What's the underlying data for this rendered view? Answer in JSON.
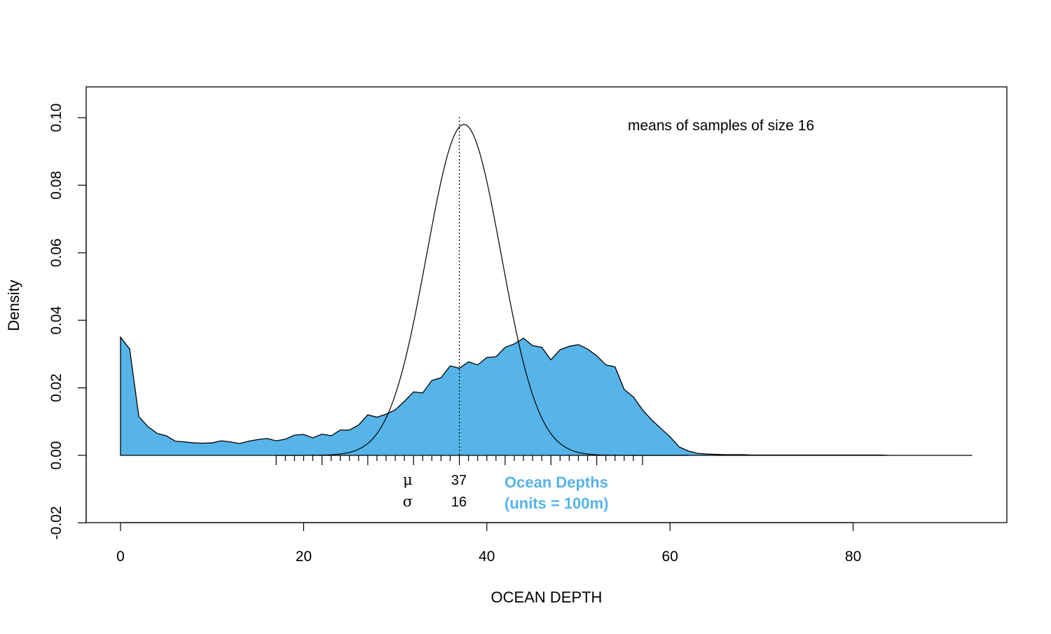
{
  "chart_data": {
    "type": "area",
    "title": "",
    "xlabel": "OCEAN DEPTH",
    "ylabel": "Density",
    "xlim": [
      0,
      93
    ],
    "ylim": [
      -0.02,
      0.1
    ],
    "x_ticks": [
      "0",
      "20",
      "40",
      "60",
      "80"
    ],
    "y_ticks": [
      "-0.02",
      "0.00",
      "0.02",
      "0.04",
      "0.06",
      "0.08",
      "0.10"
    ],
    "grid": false,
    "annotation": "means of samples of size 16",
    "legend_text": [
      "Ocean Depths",
      "(units = 100m)"
    ],
    "mu_symbol": "μ",
    "sigma_symbol": "σ",
    "mu": "37",
    "sigma": "16",
    "colors": {
      "fill": "#56B4E9",
      "stroke": "#000000",
      "annotation": "#56B4E9"
    },
    "series": [
      {
        "kind": "density-area",
        "x": [
          0,
          1,
          2,
          3,
          4,
          5,
          6,
          7,
          8,
          9,
          10,
          11,
          12,
          13,
          14,
          15,
          16,
          17,
          18,
          19,
          20,
          21,
          22,
          23,
          24,
          25,
          26,
          27,
          28,
          29,
          30,
          31,
          32,
          33,
          34,
          35,
          36,
          37,
          38,
          39,
          40,
          41,
          42,
          43,
          44,
          45,
          46,
          47,
          48,
          49,
          50,
          51,
          52,
          53,
          54,
          55,
          56,
          57,
          58,
          59,
          60,
          61,
          62,
          63,
          64,
          65,
          66,
          67,
          68,
          69,
          70,
          71,
          72,
          73,
          74,
          75,
          76,
          77,
          78,
          79,
          80,
          81,
          82,
          83,
          84,
          85,
          86,
          87,
          88,
          89,
          90,
          91,
          92,
          93
        ],
        "y": [
          0.035,
          0.0315,
          0.0115,
          0.0085,
          0.0065,
          0.0058,
          0.0042,
          0.004,
          0.0037,
          0.0036,
          0.0037,
          0.0043,
          0.004,
          0.0035,
          0.0042,
          0.0047,
          0.005,
          0.0043,
          0.0048,
          0.006,
          0.0062,
          0.0052,
          0.0063,
          0.0058,
          0.0075,
          0.0075,
          0.009,
          0.012,
          0.0113,
          0.0122,
          0.0135,
          0.016,
          0.0188,
          0.0185,
          0.0222,
          0.023,
          0.0265,
          0.0258,
          0.0277,
          0.0268,
          0.029,
          0.0292,
          0.032,
          0.033,
          0.0347,
          0.0325,
          0.032,
          0.0283,
          0.0313,
          0.0323,
          0.0328,
          0.0315,
          0.0295,
          0.0268,
          0.0262,
          0.0195,
          0.0173,
          0.0135,
          0.0105,
          0.008,
          0.0055,
          0.0025,
          0.0013,
          0.0006,
          0.0004,
          0.0003,
          0.0002,
          0.0002,
          0.0002,
          0.0001,
          0.0001,
          0.0001,
          0.0001,
          0.0001,
          0.0001,
          0.0001,
          0.0001,
          0.0001,
          0.0001,
          0.0001,
          0.0001,
          0.0001,
          0.0001,
          0.0001,
          0.0,
          0.0,
          0.0,
          0.0,
          0.0,
          0.0,
          0.0,
          0.0,
          0.0,
          0.0
        ]
      },
      {
        "kind": "normal-curve",
        "mean": 37.5,
        "sd": 4.07,
        "x_range": [
          17,
          62
        ]
      }
    ],
    "vline_x": 37,
    "rug": {
      "from": 17,
      "to": 57,
      "step": 1,
      "major_every": 5
    }
  }
}
